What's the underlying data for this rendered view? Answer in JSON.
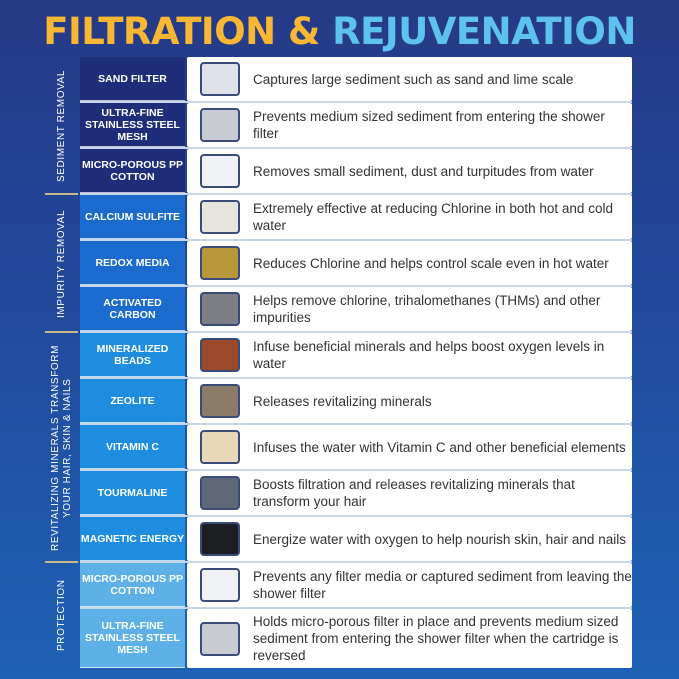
{
  "title": {
    "part1": "FILTRATION &",
    "part2": "REJUVENATION"
  },
  "sections": [
    {
      "label": "SEDIMENT REMOVAL"
    },
    {
      "label": "IMPURITY REMOVAL"
    },
    {
      "label": "REVITALIZING MINERALS TRANSFORM YOUR HAIR, SKIN & NAILS"
    },
    {
      "label": "PROTECTION"
    }
  ],
  "rows": [
    {
      "name": "SAND FILTER",
      "desc": "Captures large sediment such as sand and lime scale",
      "swatch": "#dfe2ea"
    },
    {
      "name": "ULTRA-FINE STAINLESS STEEL MESH",
      "desc": "Prevents medium sized sediment from entering the shower filter",
      "swatch": "#c9cbd2"
    },
    {
      "name": "MICRO-POROUS PP COTTON",
      "desc": "Removes small sediment, dust and turpitudes from water",
      "swatch": "#f1f2f5"
    },
    {
      "name": "CALCIUM SULFITE",
      "desc": "Extremely effective at reducing Chlorine in both hot and cold water",
      "swatch": "#e6e4df"
    },
    {
      "name": "REDOX MEDIA",
      "desc": "Reduces Chlorine and helps control scale even in hot water",
      "swatch": "#b8973a"
    },
    {
      "name": "ACTIVATED CARBON",
      "desc": "Helps remove chlorine, trihalomethanes (THMs) and other impurities",
      "swatch": "#7d7f84"
    },
    {
      "name": "MINERALIZED BEADS",
      "desc": "Infuse beneficial minerals and helps boost oxygen levels in water",
      "swatch": "#9a4a2a"
    },
    {
      "name": "ZEOLITE",
      "desc": "Releases revitalizing minerals",
      "swatch": "#8c7b66"
    },
    {
      "name": "VITAMIN C",
      "desc": "Infuses the water with Vitamin C and other beneficial elements",
      "swatch": "#e8d7b8"
    },
    {
      "name": "TOURMALINE",
      "desc": "Boosts filtration and releases revitalizing minerals that transform your hair",
      "swatch": "#5f6878"
    },
    {
      "name": "MAGNETIC ENERGY",
      "desc": "Energize water with oxygen to help nourish skin, hair and nails",
      "swatch": "#1d1e22"
    },
    {
      "name": "MICRO-POROUS PP COTTON",
      "desc": "Prevents any filter media or captured sediment from leaving the shower filter",
      "swatch": "#f1f2f5"
    },
    {
      "name": "ULTRA-FINE STAINLESS STEEL MESH",
      "desc": "Holds micro-porous filter in place and prevents medium sized sediment from entering the shower filter when the cartridge is reversed",
      "swatch": "#c9cbd2"
    }
  ]
}
